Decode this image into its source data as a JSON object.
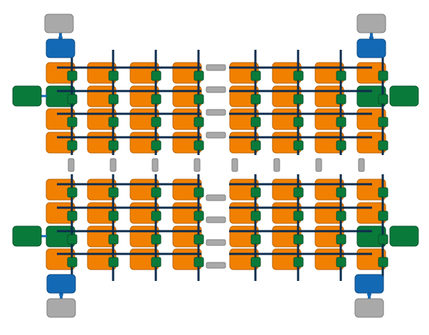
{
  "diagram": {
    "colors": {
      "core": "#F28000",
      "core_stroke": "#B86200",
      "router": "#0A7A3A",
      "router_stroke": "#06512A",
      "link": "#0D2C4E",
      "bridge": "#A9A9A9",
      "bridge_stroke": "#7E7E7E",
      "memory_controller": "#1469B5",
      "memory_controller_stroke": "#0C4A82",
      "dram": "#A9A9A9",
      "dram_stroke": "#7E7E7E",
      "io": "#0A7A3A",
      "io_stroke": "#06512A",
      "background": "#FFFFFF"
    },
    "quadrants": [
      {
        "name": "top-left",
        "rows": 4,
        "cols": 4
      },
      {
        "name": "top-right",
        "rows": 4,
        "cols": 4
      },
      {
        "name": "bottom-left",
        "rows": 4,
        "cols": 4
      },
      {
        "name": "bottom-right",
        "rows": 4,
        "cols": 4
      }
    ]
  }
}
